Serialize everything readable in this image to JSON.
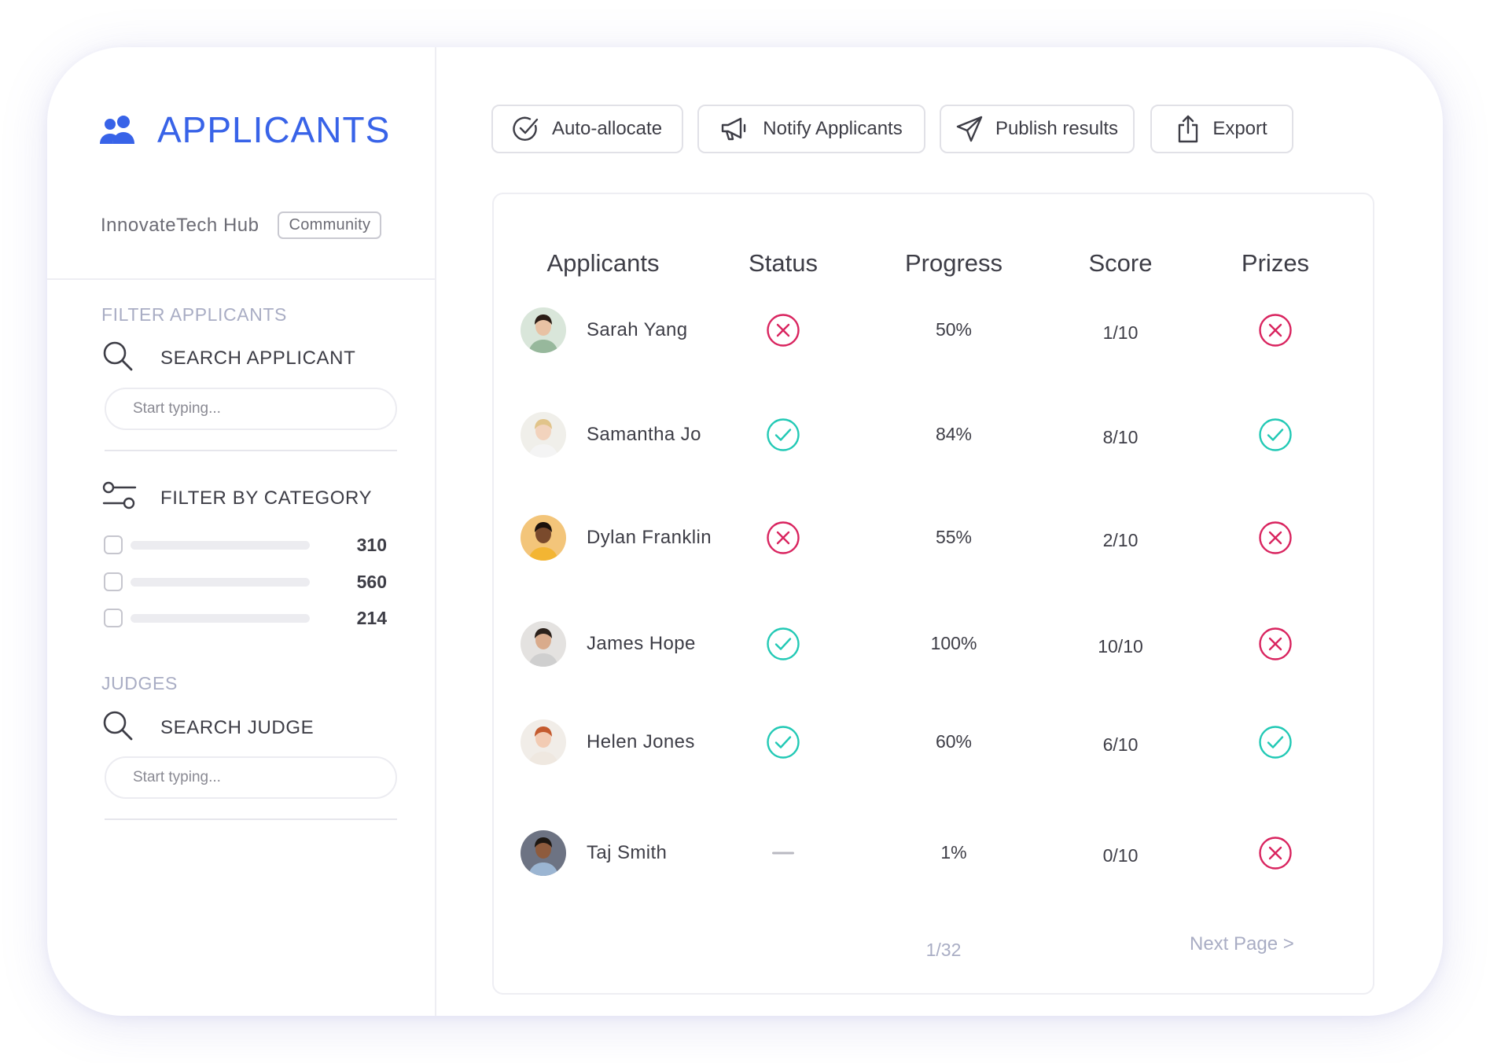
{
  "sidebar": {
    "title": "APPLICANTS",
    "org_name": "InnovateTech Hub",
    "org_badge": "Community",
    "filter_applicants_label": "FILTER APPLICANTS",
    "search_applicant_label": "SEARCH APPLICANT",
    "search_applicant_placeholder": "Start typing...",
    "filter_category_label": "FILTER BY CATEGORY",
    "categories": [
      {
        "count": "310"
      },
      {
        "count": "560"
      },
      {
        "count": "214"
      }
    ],
    "judges_label": "JUDGES",
    "search_judge_label": "SEARCH JUDGE",
    "search_judge_placeholder": "Start typing..."
  },
  "toolbar": {
    "auto_allocate": "Auto-allocate",
    "notify": "Notify Applicants",
    "publish": "Publish results",
    "export": "Export"
  },
  "table": {
    "headers": {
      "applicants": "Applicants",
      "status": "Status",
      "progress": "Progress",
      "score": "Score",
      "prizes": "Prizes"
    },
    "rows": [
      {
        "name": "Sarah Yang",
        "status": "rejected",
        "progress": "50%",
        "score": "1/10",
        "prize": "none"
      },
      {
        "name": "Samantha Jo",
        "status": "approved",
        "progress": "84%",
        "score": "8/10",
        "prize": "awarded"
      },
      {
        "name": "Dylan Franklin",
        "status": "rejected",
        "progress": "55%",
        "score": "2/10",
        "prize": "none"
      },
      {
        "name": "James Hope",
        "status": "approved",
        "progress": "100%",
        "score": "10/10",
        "prize": "none"
      },
      {
        "name": "Helen Jones",
        "status": "approved",
        "progress": "60%",
        "score": "6/10",
        "prize": "awarded"
      },
      {
        "name": "Taj Smith",
        "status": "pending",
        "progress": "1%",
        "score": "0/10",
        "prize": "none"
      }
    ],
    "pagination": "1/32",
    "next_page": "Next Page >"
  },
  "icons": {
    "brand": "users-icon",
    "search": "search-icon",
    "filter": "sliders-icon",
    "auto_allocate": "check-circle-icon",
    "notify": "megaphone-icon",
    "publish": "paper-plane-icon",
    "export": "share-upload-icon",
    "approved": "check-circle-icon",
    "rejected": "x-circle-icon",
    "pending": "dash-icon"
  },
  "colors": {
    "brand": "#3863e8",
    "approved": "#22c9b5",
    "rejected": "#d9245f",
    "muted": "#a9adc4"
  }
}
